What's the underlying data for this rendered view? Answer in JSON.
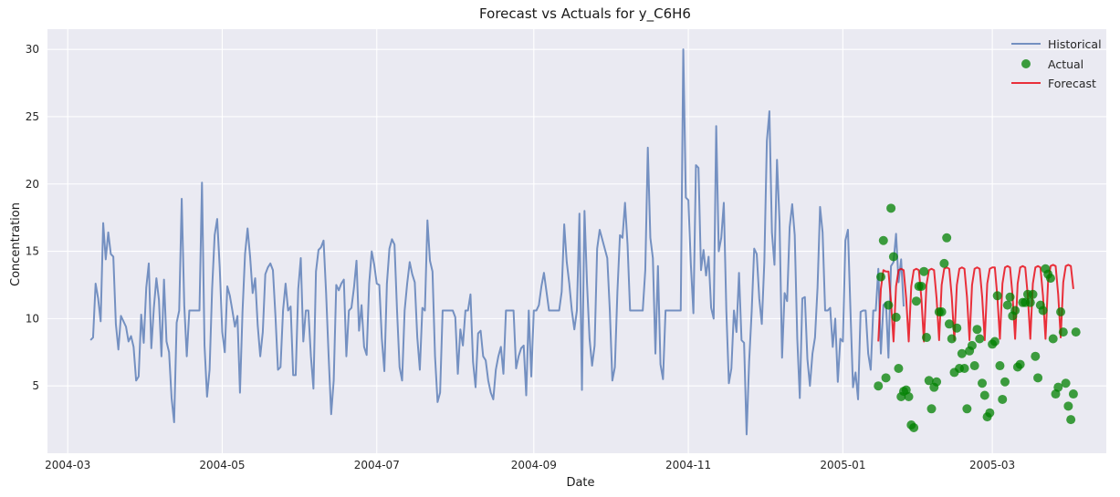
{
  "colors": {
    "background": "#eaeaf2",
    "historical": "#4c72b0",
    "actual": "#008000",
    "forecast": "#e8000b"
  },
  "chart_data": {
    "type": "line",
    "title": "Forecast vs Actuals for y_C6H6",
    "xlabel": "Date",
    "ylabel": "Concentration",
    "xlim": [
      "2004-02-22",
      "2005-04-15"
    ],
    "ylim": [
      0,
      31.5
    ],
    "grid": true,
    "legend_position": "top-right",
    "x_ticks": [
      {
        "date": "2004-03-01",
        "label": "2004-03"
      },
      {
        "date": "2004-05-01",
        "label": "2004-05"
      },
      {
        "date": "2004-07-01",
        "label": "2004-07"
      },
      {
        "date": "2004-09-01",
        "label": "2004-09"
      },
      {
        "date": "2004-11-01",
        "label": "2004-11"
      },
      {
        "date": "2005-01-01",
        "label": "2005-01"
      },
      {
        "date": "2005-03-01",
        "label": "2005-03"
      }
    ],
    "y_ticks": [
      {
        "value": 5,
        "label": "5"
      },
      {
        "value": 10,
        "label": "10"
      },
      {
        "value": 15,
        "label": "15"
      },
      {
        "value": 20,
        "label": "20"
      },
      {
        "value": 25,
        "label": "25"
      },
      {
        "value": 30,
        "label": "30"
      }
    ],
    "series": [
      {
        "name": "Historical",
        "style": "line",
        "start_date": "2004-03-10",
        "values": [
          8.4,
          8.6,
          12.6,
          11.5,
          9.8,
          17.1,
          14.4,
          16.4,
          14.8,
          14.6,
          9.6,
          7.7,
          10.2,
          9.8,
          9.4,
          8.3,
          8.7,
          7.9,
          5.4,
          5.7,
          10.3,
          8.2,
          12.3,
          14.1,
          7.8,
          10.8,
          13.0,
          11.4,
          7.2,
          12.9,
          8.3,
          7.5,
          4.1,
          2.3,
          9.7,
          10.6,
          18.9,
          11.0,
          7.2,
          10.6,
          10.6,
          10.6,
          10.6,
          10.6,
          20.1,
          8.0,
          4.2,
          6.2,
          12.2,
          16.2,
          17.4,
          13.8,
          9.0,
          7.5,
          12.4,
          11.7,
          10.6,
          9.4,
          10.2,
          4.5,
          10.5,
          14.8,
          16.7,
          14.6,
          11.9,
          13.0,
          9.5,
          7.2,
          9.0,
          13.3,
          13.8,
          14.1,
          13.6,
          10.2,
          6.2,
          6.4,
          10.6,
          12.6,
          10.6,
          10.9,
          5.8,
          5.8,
          12.2,
          14.5,
          8.3,
          10.6,
          10.6,
          7.2,
          4.8,
          13.5,
          15.1,
          15.3,
          15.8,
          11.9,
          7.2,
          2.9,
          5.4,
          12.5,
          12.1,
          12.6,
          12.9,
          7.2,
          10.6,
          10.8,
          12.3,
          14.3,
          9.1,
          11.0,
          7.9,
          7.3,
          12.6,
          15.0,
          14.0,
          12.6,
          12.5,
          8.5,
          6.1,
          12.6,
          15.2,
          15.9,
          15.5,
          10.6,
          6.4,
          5.4,
          10.6,
          12.6,
          14.2,
          13.3,
          12.7,
          8.6,
          6.2,
          10.8,
          10.6,
          17.3,
          14.3,
          13.5,
          7.2,
          3.8,
          4.5,
          10.6,
          10.6,
          10.6,
          10.6,
          10.6,
          10.1,
          5.9,
          9.2,
          8.0,
          10.6,
          10.6,
          11.8,
          6.8,
          4.9,
          8.9,
          9.1,
          7.2,
          6.9,
          5.4,
          4.5,
          4.0,
          6.2,
          7.2,
          7.9,
          5.9,
          10.6,
          10.6,
          10.6,
          10.6,
          6.3,
          7.2,
          7.8,
          8.0,
          4.3,
          10.6,
          5.7,
          10.6,
          10.6,
          11.0,
          12.4,
          13.4,
          12.0,
          10.6,
          10.6,
          10.6,
          10.6,
          10.6,
          12.0,
          17.0,
          14.2,
          12.6,
          10.6,
          9.2,
          10.6,
          17.8,
          4.7,
          18.0,
          12.6,
          8.5,
          6.5,
          8.0,
          15.2,
          16.6,
          15.9,
          15.2,
          14.5,
          10.6,
          5.4,
          6.4,
          12.0,
          16.2,
          16.0,
          18.6,
          15.5,
          10.6,
          10.6,
          10.6,
          10.6,
          10.6,
          10.6,
          13.6,
          22.7,
          16.0,
          14.5,
          7.4,
          13.9,
          6.6,
          5.5,
          10.6,
          10.6,
          10.6,
          10.6,
          10.6,
          10.6,
          10.6,
          30.0,
          19.0,
          18.8,
          14.0,
          10.4,
          21.4,
          21.2,
          13.6,
          15.1,
          13.2,
          14.6,
          10.8,
          10.0,
          24.3,
          15.0,
          16.0,
          18.6,
          10.6,
          5.2,
          6.3,
          10.6,
          9.0,
          13.4,
          8.4,
          8.2,
          1.4,
          6.8,
          10.5,
          15.2,
          14.8,
          11.5,
          9.6,
          14.2,
          23.2,
          25.4,
          16.4,
          14.0,
          21.8,
          17.2,
          7.1,
          11.9,
          11.3,
          16.8,
          18.5,
          16.2,
          8.5,
          4.1,
          11.5,
          11.6,
          7.0,
          5.0,
          7.4,
          8.6,
          12.3,
          18.3,
          16.4,
          10.6,
          10.6,
          10.8,
          7.9,
          10.0,
          5.3,
          8.5,
          8.3,
          15.8,
          16.6,
          10.6,
          4.9,
          6.0,
          4.0,
          10.5,
          10.6,
          10.6,
          7.4,
          6.2,
          10.6,
          10.6,
          13.7,
          7.4,
          11.0,
          11.2,
          7.1,
          13.9,
          14.2,
          16.3,
          12.7,
          14.4,
          10.9
        ]
      },
      {
        "name": "Actual",
        "style": "markers",
        "start_date": "2005-01-15",
        "values": [
          5.0,
          13.1,
          15.8,
          5.6,
          11.0,
          18.2,
          14.6,
          10.1,
          6.3,
          4.2,
          4.6,
          4.7,
          4.2,
          2.1,
          1.9,
          11.3,
          12.4,
          12.4,
          13.5,
          8.6,
          5.4,
          3.3,
          4.9,
          5.3,
          10.5,
          10.5,
          14.1,
          16.0,
          9.6,
          8.5,
          6.0,
          9.3,
          6.3,
          7.4,
          6.3,
          3.3,
          7.6,
          8.0,
          6.5,
          9.2,
          8.5,
          5.2,
          4.3,
          2.7,
          3.0,
          8.1,
          8.3,
          11.7,
          6.5,
          4.0,
          5.3,
          11.0,
          11.6,
          10.2,
          10.6,
          6.4,
          6.6,
          11.2,
          11.2,
          11.8,
          11.2,
          11.8,
          7.2,
          5.6,
          11.0,
          10.6,
          13.7,
          13.3,
          13.0,
          8.5,
          4.4,
          4.9,
          10.5,
          9.0,
          5.2,
          3.5,
          2.5,
          4.4,
          9.0
        ]
      },
      {
        "name": "Forecast",
        "style": "line",
        "start_date": "2005-01-15",
        "values": [
          8.3,
          12.2,
          13.6,
          13.5,
          13.5,
          11.3,
          8.3,
          12.4,
          13.6,
          13.7,
          13.6,
          11.5,
          8.3,
          12.4,
          13.6,
          13.7,
          13.6,
          11.5,
          8.3,
          12.5,
          13.6,
          13.7,
          13.6,
          11.5,
          8.4,
          12.5,
          13.7,
          13.8,
          13.7,
          11.6,
          8.4,
          12.5,
          13.7,
          13.8,
          13.7,
          11.6,
          8.4,
          12.5,
          13.7,
          13.8,
          13.7,
          11.6,
          8.4,
          12.6,
          13.7,
          13.8,
          13.8,
          11.6,
          8.5,
          12.6,
          13.8,
          13.9,
          13.8,
          11.7,
          8.5,
          12.6,
          13.8,
          13.9,
          13.8,
          11.7,
          8.5,
          12.6,
          13.8,
          13.9,
          13.8,
          11.7,
          8.5,
          12.7,
          13.9,
          14.0,
          13.9,
          11.8,
          8.6,
          12.7,
          13.9,
          14.0,
          13.9,
          12.2
        ]
      }
    ]
  }
}
